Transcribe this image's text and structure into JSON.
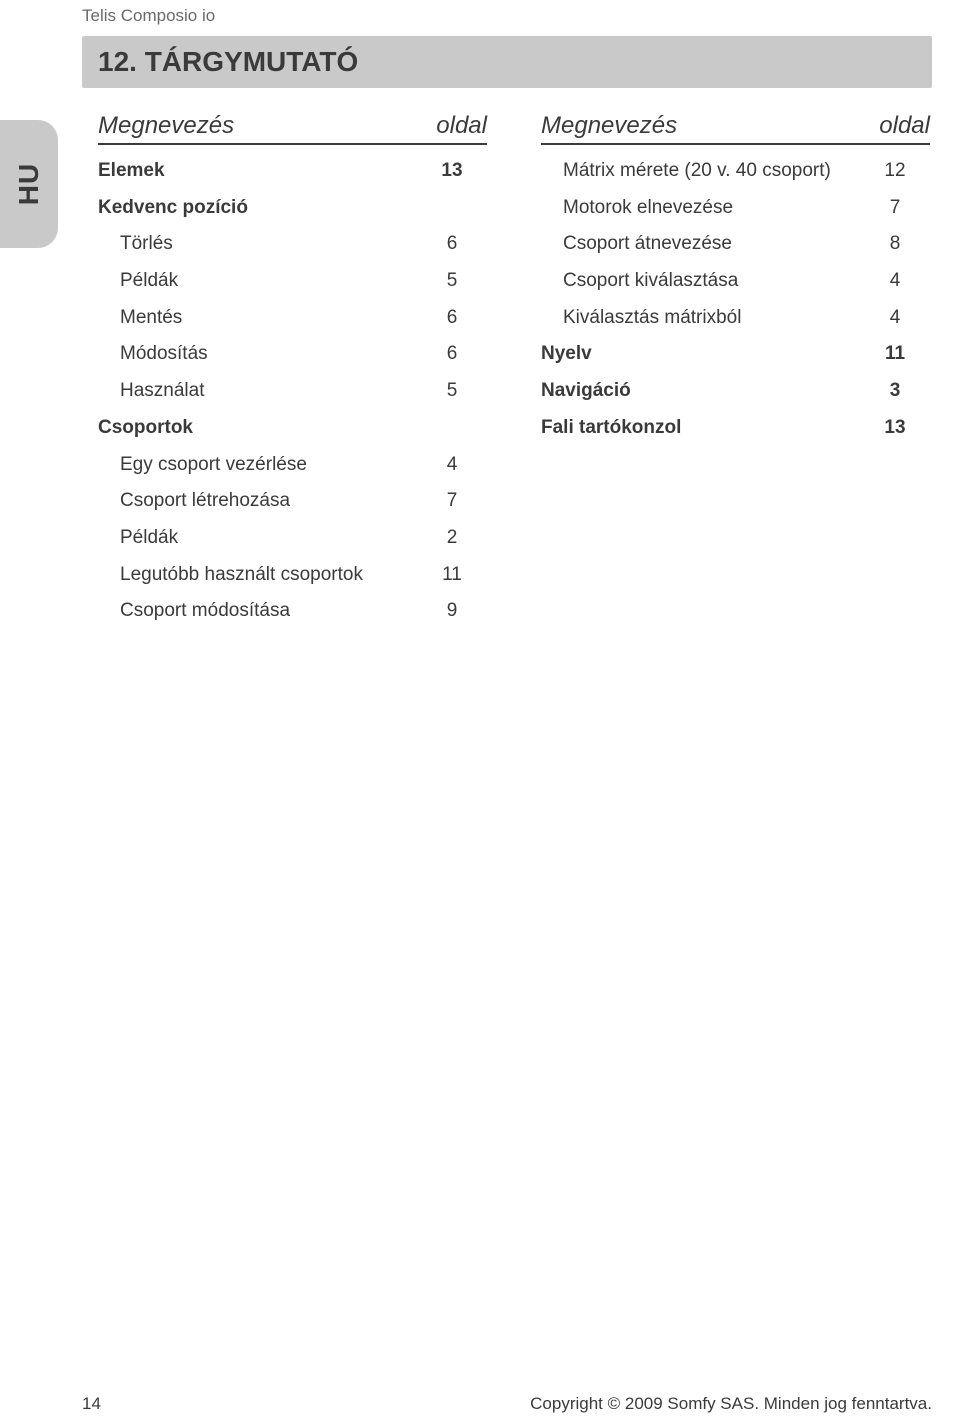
{
  "header": {
    "product": "Telis Composio io"
  },
  "section": {
    "title": "12. TÁRGYMUTATÓ"
  },
  "sideTab": {
    "label": "HU"
  },
  "tableHeader": {
    "name": "Megnevezés",
    "page": "oldal"
  },
  "left": {
    "rows": [
      {
        "name": "Elemek",
        "page": "13",
        "bold": true,
        "indent": false
      },
      {
        "name": "Kedvenc pozíció",
        "page": "",
        "bold": true,
        "indent": false
      },
      {
        "name": "Törlés",
        "page": "6",
        "bold": false,
        "indent": true
      },
      {
        "name": "Példák",
        "page": "5",
        "bold": false,
        "indent": true
      },
      {
        "name": "Mentés",
        "page": "6",
        "bold": false,
        "indent": true
      },
      {
        "name": "Módosítás",
        "page": "6",
        "bold": false,
        "indent": true
      },
      {
        "name": "Használat",
        "page": "5",
        "bold": false,
        "indent": true
      },
      {
        "name": "Csoportok",
        "page": "",
        "bold": true,
        "indent": false
      },
      {
        "name": "Egy csoport vezérlése",
        "page": "4",
        "bold": false,
        "indent": true
      },
      {
        "name": "Csoport létrehozása",
        "page": "7",
        "bold": false,
        "indent": true
      },
      {
        "name": "Példák",
        "page": "2",
        "bold": false,
        "indent": true
      },
      {
        "name": "Legutóbb használt csoportok",
        "page": "11",
        "bold": false,
        "indent": true
      },
      {
        "name": "Csoport módosítása",
        "page": "9",
        "bold": false,
        "indent": true
      }
    ]
  },
  "right": {
    "rows": [
      {
        "name": "Mátrix mérete (20 v. 40 csoport)",
        "page": "12",
        "bold": false,
        "indent": true
      },
      {
        "name": "Motorok elnevezése",
        "page": "7",
        "bold": false,
        "indent": true
      },
      {
        "name": "Csoport átnevezése",
        "page": "8",
        "bold": false,
        "indent": true
      },
      {
        "name": "Csoport kiválasztása",
        "page": "4",
        "bold": false,
        "indent": true
      },
      {
        "name": "Kiválasztás mátrixból",
        "page": "4",
        "bold": false,
        "indent": true
      },
      {
        "name": "Nyelv",
        "page": "11",
        "bold": true,
        "indent": false
      },
      {
        "name": "Navigáció",
        "page": "3",
        "bold": true,
        "indent": false
      },
      {
        "name": "Fali tartókonzol",
        "page": "13",
        "bold": true,
        "indent": false
      }
    ]
  },
  "footer": {
    "pageNumber": "14",
    "copyright": "Copyright © 2009 Somfy SAS. Minden jog fenntartva."
  }
}
